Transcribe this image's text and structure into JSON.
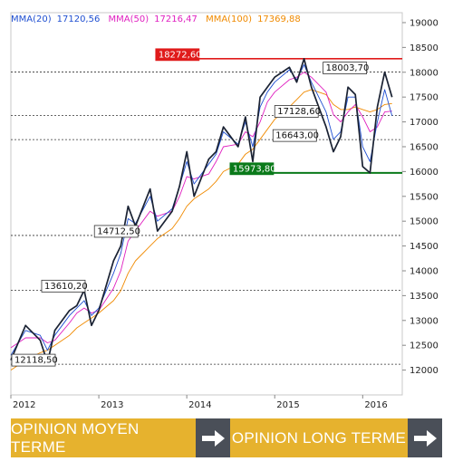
{
  "legend": {
    "mma20": "MMA(20)",
    "mma20_value": "17120,56",
    "mma50": "MMA(50)",
    "mma50_value": "17216,47",
    "mma100": "MMA(100)",
    "mma100_value": "17369,88"
  },
  "colors": {
    "price": "#1a2233",
    "mma20": "#1f4fd1",
    "mma50": "#e020c0",
    "mma100": "#f08a00",
    "resistance": "#e01b1b",
    "support": "#0a7a1a",
    "button_label": "#e6b22e",
    "button_arrow": "#4a4f58"
  },
  "chart_data": {
    "type": "line",
    "x_labels": [
      "2012",
      "2013",
      "2014",
      "2015",
      "2016"
    ],
    "y_ticks": [
      "12000",
      "12500",
      "13000",
      "13500",
      "14000",
      "14500",
      "15000",
      "15500",
      "16000",
      "16500",
      "17000",
      "17500",
      "18000",
      "18500",
      "19000"
    ],
    "ylim": [
      11500,
      19200
    ],
    "grid": "off",
    "x": [
      "2012-01",
      "2012-03",
      "2012-05",
      "2012-06",
      "2012-07",
      "2012-09",
      "2012-10",
      "2012-11",
      "2012-12",
      "2013-01",
      "2013-03",
      "2013-04",
      "2013-05",
      "2013-06",
      "2013-08",
      "2013-09",
      "2013-11",
      "2013-12",
      "2014-01",
      "2014-02",
      "2014-04",
      "2014-05",
      "2014-06",
      "2014-08",
      "2014-09",
      "2014-10",
      "2014-11",
      "2014-12",
      "2015-01",
      "2015-03",
      "2015-04",
      "2015-05",
      "2015-06",
      "2015-08",
      "2015-09",
      "2015-10",
      "2015-11",
      "2015-12",
      "2016-01",
      "2016-02",
      "2016-03",
      "2016-04",
      "2016-05"
    ],
    "series": [
      {
        "name": "",
        "values": [
          12200,
          12900,
          12600,
          12150,
          12800,
          13200,
          13300,
          13610,
          12900,
          13200,
          14200,
          14500,
          15300,
          14900,
          15650,
          14800,
          15200,
          15700,
          16400,
          15500,
          16250,
          16400,
          16900,
          16500,
          17100,
          16200,
          17500,
          17700,
          17900,
          18100,
          17800,
          18272,
          17700,
          16900,
          16400,
          16700,
          17700,
          17550,
          16100,
          15973,
          17300,
          18003,
          17500
        ]
      },
      {
        "name": "MMA(20)",
        "values": [
          12300,
          12800,
          12700,
          12400,
          12700,
          13100,
          13250,
          13400,
          13100,
          13250,
          13950,
          14350,
          15050,
          14950,
          15500,
          15000,
          15250,
          15700,
          16200,
          15750,
          16150,
          16350,
          16800,
          16550,
          17000,
          16500,
          17300,
          17600,
          17800,
          18050,
          17850,
          18150,
          17800,
          17200,
          16650,
          16800,
          17500,
          17500,
          16500,
          16200,
          17000,
          17650,
          17121
        ]
      },
      {
        "name": "MMA(50)",
        "values": [
          12450,
          12650,
          12650,
          12550,
          12600,
          12950,
          13150,
          13250,
          13150,
          13200,
          13650,
          14000,
          14600,
          14800,
          15200,
          15100,
          15200,
          15500,
          15900,
          15850,
          15950,
          16200,
          16500,
          16550,
          16800,
          16700,
          17000,
          17400,
          17600,
          17850,
          17900,
          18000,
          17900,
          17600,
          17150,
          17000,
          17200,
          17350,
          17100,
          16800,
          16900,
          17200,
          17216
        ]
      },
      {
        "name": "MMA(100)",
        "values": [
          12000,
          12200,
          12350,
          12400,
          12500,
          12700,
          12850,
          12950,
          13050,
          13150,
          13400,
          13600,
          13950,
          14200,
          14500,
          14650,
          14850,
          15050,
          15300,
          15450,
          15650,
          15800,
          16000,
          16150,
          16350,
          16450,
          16650,
          16850,
          17050,
          17300,
          17450,
          17600,
          17650,
          17550,
          17350,
          17250,
          17250,
          17300,
          17250,
          17200,
          17250,
          17350,
          17370
        ]
      }
    ],
    "levels": [
      {
        "value": 18272.6,
        "label": "18272,60",
        "style": "resistance"
      },
      {
        "value": 18003.7,
        "label": "18003,70",
        "style": "dotted"
      },
      {
        "value": 17128.6,
        "label": "17128,60",
        "style": "dotted"
      },
      {
        "value": 16643.0,
        "label": "16643,00",
        "style": "dotted"
      },
      {
        "value": 15973.8,
        "label": "15973,80",
        "style": "support"
      },
      {
        "value": 14712.5,
        "label": "14712,50",
        "style": "dotted"
      },
      {
        "value": 13610.2,
        "label": "13610,20",
        "style": "dotted"
      },
      {
        "value": 12118.5,
        "label": "12118,50",
        "style": "dotted"
      }
    ]
  },
  "buttons": {
    "medium_term": "OPINION MOYEN TERME",
    "long_term": "OPINION LONG TERME"
  }
}
